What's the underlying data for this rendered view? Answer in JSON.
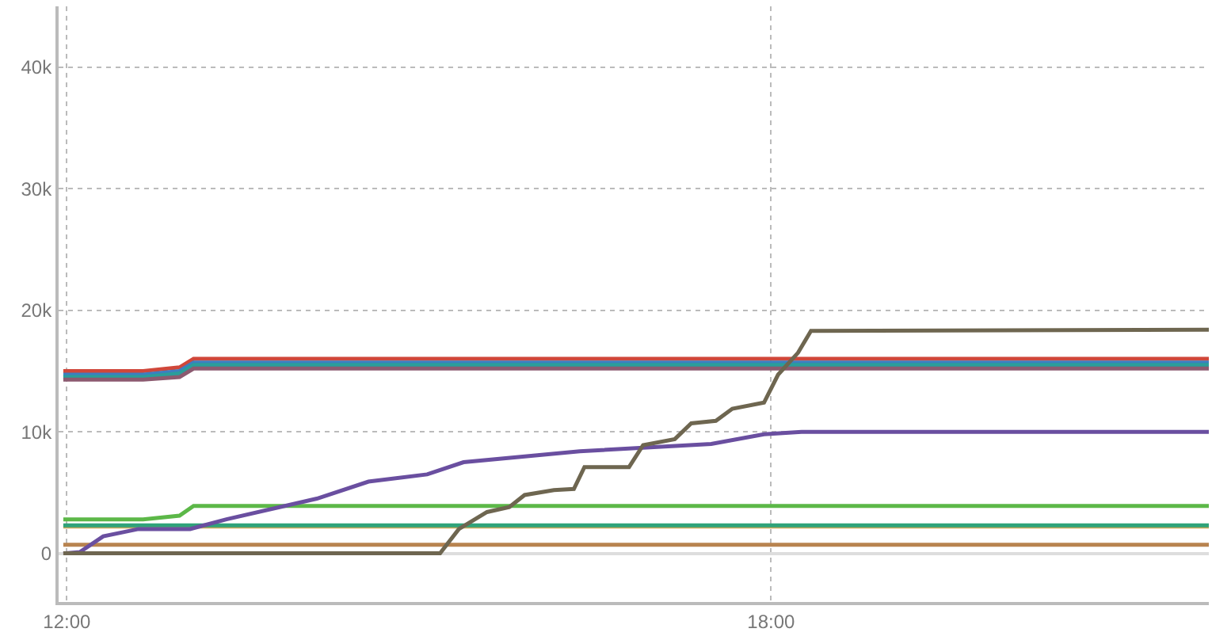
{
  "chart_data": {
    "type": "line",
    "grid": true,
    "marker": "none",
    "line_style": "solid",
    "xlim": [
      11.93,
      21.73
    ],
    "xticks": [
      {
        "value": 12,
        "label": "12:00"
      },
      {
        "value": 18,
        "label": "18:00"
      }
    ],
    "ylim": [
      -4000,
      45000
    ],
    "yticks": [
      0,
      {
        "value": 10000,
        "label": "10k"
      },
      {
        "value": 20000,
        "label": "20k"
      },
      {
        "value": 30000,
        "label": "30k"
      },
      {
        "value": 40000,
        "label": "40k"
      }
    ],
    "series": [
      {
        "color": "#d0473a",
        "x": [
          11.97,
          12.65,
          12.96,
          13.08,
          21.73
        ],
        "values": [
          15000,
          15000,
          15300,
          16000,
          16000
        ]
      },
      {
        "color": "#3d7ec0",
        "x": [
          11.97,
          12.65,
          12.96,
          13.08,
          21.73
        ],
        "values": [
          14700,
          14700,
          15000,
          15700,
          15700
        ]
      },
      {
        "color": "#2a9d9a",
        "x": [
          11.97,
          12.65,
          12.96,
          13.08,
          21.73
        ],
        "values": [
          14500,
          14500,
          14800,
          15500,
          15500
        ]
      },
      {
        "color": "#8c5a70",
        "x": [
          11.97,
          12.65,
          12.96,
          13.08,
          21.73
        ],
        "values": [
          14300,
          14300,
          14500,
          15200,
          15200
        ]
      },
      {
        "color": "#5cb848",
        "x": [
          11.97,
          12.65,
          12.96,
          13.08,
          21.73
        ],
        "values": [
          2800,
          2800,
          3100,
          3900,
          3900
        ]
      },
      {
        "color": "#c9a85a",
        "x": [
          11.97,
          21.73
        ],
        "values": [
          2200,
          2200
        ]
      },
      {
        "color": "#2fa37a",
        "x": [
          11.97,
          21.73
        ],
        "values": [
          2300,
          2300
        ]
      },
      {
        "color": "#b8834f",
        "x": [
          11.97,
          21.73
        ],
        "values": [
          700,
          700
        ]
      },
      {
        "color": "#6a4fa0",
        "x": [
          11.97,
          12.11,
          12.31,
          12.61,
          13.05,
          13.36,
          14.13,
          14.57,
          15.07,
          15.38,
          16.37,
          17.49,
          17.94,
          18.26,
          21.73
        ],
        "values": [
          0,
          100,
          1400,
          2000,
          2000,
          2800,
          4500,
          5900,
          6500,
          7500,
          8400,
          9000,
          9800,
          10000,
          10000
        ]
      },
      {
        "color": "#6e6650",
        "x": [
          11.97,
          15.18,
          15.34,
          15.58,
          15.77,
          15.9,
          16.15,
          16.32,
          16.41,
          16.79,
          16.91,
          17.18,
          17.32,
          17.53,
          17.67,
          17.94,
          18.06,
          18.23,
          18.34,
          21.73
        ],
        "values": [
          0,
          0,
          2000,
          3400,
          3800,
          4800,
          5200,
          5300,
          7100,
          7100,
          8900,
          9400,
          10700,
          10900,
          11900,
          12400,
          14700,
          16500,
          18300,
          18400
        ]
      }
    ]
  }
}
